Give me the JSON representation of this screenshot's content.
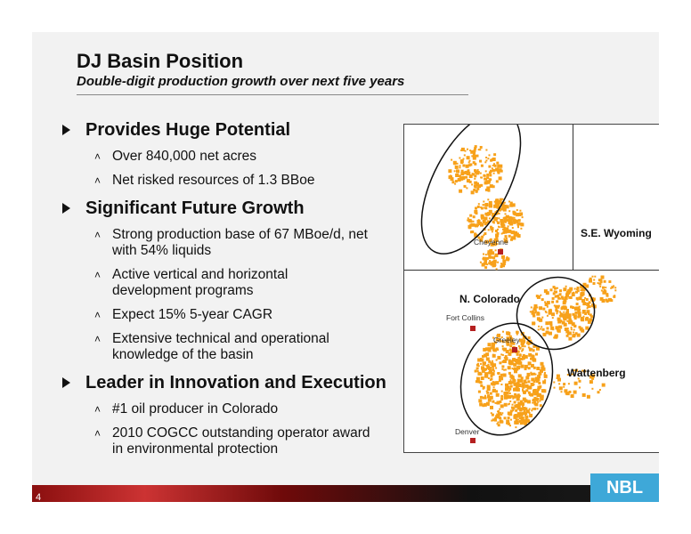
{
  "header": {
    "title": "DJ Basin Position",
    "subtitle": "Double-digit production growth over next five years"
  },
  "sections": [
    {
      "heading": "Provides Huge Potential",
      "items": [
        "Over 840,000 net acres",
        "Net risked resources of 1.3 BBoe"
      ]
    },
    {
      "heading": "Significant Future Growth",
      "items": [
        "Strong production base of 67 MBoe/d, net with 54% liquids",
        "Active vertical and horizontal development programs",
        "Expect 15% 5-year CAGR",
        "Extensive technical and operational knowledge of the basin"
      ]
    },
    {
      "heading": "Leader in Innovation and Execution",
      "items": [
        "#1 oil producer in Colorado",
        "2010 COGCC outstanding operator award in environmental protection"
      ]
    }
  ],
  "map": {
    "regions": {
      "se_wyoming": "S.E. Wyoming",
      "n_colorado": "N. Colorado",
      "wattenberg": "Wattenberg"
    },
    "cities": {
      "cheyenne": "Cheyenne",
      "fort_collins": "Fort Collins",
      "greeley": "Greeley",
      "denver": "Denver"
    },
    "acreage_color": "#f7a11a",
    "city_marker_color": "#b52020"
  },
  "footer": {
    "page_number": "4",
    "logo": "NBL",
    "logo_color": "#3ea8d8"
  }
}
